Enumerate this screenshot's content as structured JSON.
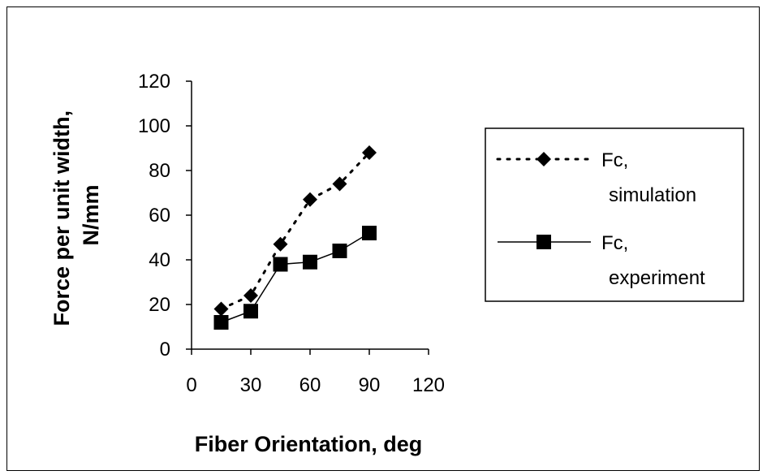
{
  "chart_data": {
    "type": "line",
    "xlabel": "Fiber Orientation, deg",
    "ylabel_lines": [
      "Force per unit width,",
      "N/mm"
    ],
    "xlim": [
      0,
      120
    ],
    "ylim": [
      0,
      120
    ],
    "xticks": [
      "0",
      "30",
      "60",
      "90",
      "120"
    ],
    "yticks": [
      "0",
      "20",
      "40",
      "60",
      "80",
      "100",
      "120"
    ],
    "grid": false,
    "legend_position": "right",
    "series": [
      {
        "name_lines": [
          "Fc,",
          "simulation"
        ],
        "marker": "diamond",
        "line_style": "dotted",
        "color": "#000000",
        "x": [
          15,
          30,
          45,
          60,
          75,
          90
        ],
        "y": [
          18,
          24,
          47,
          67,
          74,
          88
        ]
      },
      {
        "name_lines": [
          "Fc,",
          "experiment"
        ],
        "marker": "square",
        "line_style": "solid",
        "color": "#000000",
        "x": [
          15,
          30,
          45,
          60,
          75,
          90
        ],
        "y": [
          12,
          17,
          38,
          39,
          44,
          52
        ]
      }
    ]
  }
}
